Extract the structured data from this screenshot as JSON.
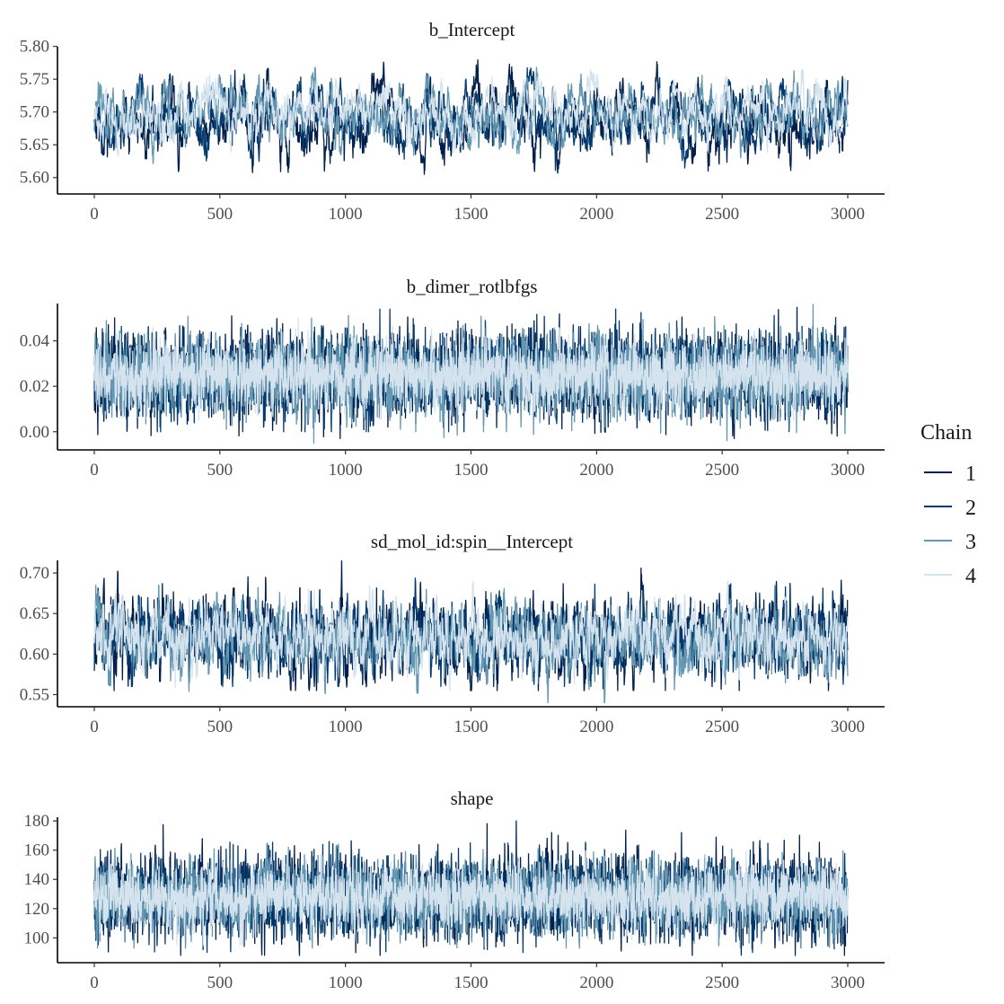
{
  "chart_data": {
    "type": "line",
    "legend": {
      "title": "Chain",
      "placement": "right"
    },
    "series_colors": [
      "#011f4b",
      "#03396c",
      "#6497b1",
      "#d5e3ee"
    ],
    "chains": [
      "1",
      "2",
      "3",
      "4"
    ],
    "panels": [
      {
        "title": "b_Intercept",
        "xlim": [
          0,
          3000
        ],
        "x_ticks": [
          0,
          500,
          1000,
          1500,
          2000,
          2500,
          3000
        ],
        "ylim": [
          5.575,
          5.805
        ],
        "y_ticks": [
          5.6,
          5.65,
          5.7,
          5.75,
          5.8
        ],
        "y_tick_labels": [
          "5.60",
          "5.65",
          "5.70",
          "5.75",
          "5.80"
        ],
        "series": [
          {
            "chain": "1",
            "center": 5.685,
            "sd": 0.028,
            "min": 5.58,
            "max": 5.795,
            "rho": 0.9
          },
          {
            "chain": "2",
            "center": 5.69,
            "sd": 0.025,
            "min": 5.6,
            "max": 5.795,
            "rho": 0.9
          },
          {
            "chain": "3",
            "center": 5.695,
            "sd": 0.024,
            "min": 5.605,
            "max": 5.785,
            "rho": 0.9
          },
          {
            "chain": "4",
            "center": 5.7,
            "sd": 0.022,
            "min": 5.59,
            "max": 5.765,
            "rho": 0.9
          }
        ]
      },
      {
        "title": "b_dimer_rotlbfgs",
        "xlim": [
          0,
          3000
        ],
        "x_ticks": [
          0,
          500,
          1000,
          1500,
          2000,
          2500,
          3000
        ],
        "ylim": [
          -0.008,
          0.058
        ],
        "y_ticks": [
          0.0,
          0.02,
          0.04
        ],
        "y_tick_labels": [
          "0.00",
          "0.02",
          "0.04"
        ],
        "series": [
          {
            "chain": "1",
            "center": 0.025,
            "sd": 0.009,
            "min": -0.003,
            "max": 0.055,
            "rho": 0.25
          },
          {
            "chain": "2",
            "center": 0.025,
            "sd": 0.009,
            "min": 0.0,
            "max": 0.054,
            "rho": 0.25
          },
          {
            "chain": "3",
            "center": 0.025,
            "sd": 0.009,
            "min": -0.005,
            "max": 0.056,
            "rho": 0.25
          },
          {
            "chain": "4",
            "center": 0.025,
            "sd": 0.007,
            "min": 0.005,
            "max": 0.05,
            "rho": 0.25
          }
        ]
      },
      {
        "title": "sd_mol_id:spin__Intercept",
        "xlim": [
          0,
          3000
        ],
        "x_ticks": [
          0,
          500,
          1000,
          1500,
          2000,
          2500,
          3000
        ],
        "ylim": [
          0.535,
          0.72
        ],
        "y_ticks": [
          0.55,
          0.6,
          0.65,
          0.7
        ],
        "y_tick_labels": [
          "0.55",
          "0.60",
          "0.65",
          "0.70"
        ],
        "series": [
          {
            "chain": "1",
            "center": 0.62,
            "sd": 0.025,
            "min": 0.555,
            "max": 0.715,
            "rho": 0.75
          },
          {
            "chain": "2",
            "center": 0.62,
            "sd": 0.023,
            "min": 0.56,
            "max": 0.695,
            "rho": 0.75
          },
          {
            "chain": "3",
            "center": 0.618,
            "sd": 0.022,
            "min": 0.54,
            "max": 0.685,
            "rho": 0.75
          },
          {
            "chain": "4",
            "center": 0.62,
            "sd": 0.02,
            "min": 0.555,
            "max": 0.69,
            "rho": 0.75
          }
        ]
      },
      {
        "title": "shape",
        "xlim": [
          0,
          3000
        ],
        "x_ticks": [
          0,
          500,
          1000,
          1500,
          2000,
          2500,
          3000
        ],
        "ylim": [
          83,
          185
        ],
        "y_ticks": [
          100,
          120,
          140,
          160,
          180
        ],
        "y_tick_labels": [
          "100",
          "120",
          "140",
          "160",
          "180"
        ],
        "series": [
          {
            "chain": "1",
            "center": 128,
            "sd": 14,
            "min": 88,
            "max": 180,
            "rho": 0.3
          },
          {
            "chain": "2",
            "center": 128,
            "sd": 13,
            "min": 90,
            "max": 178,
            "rho": 0.3
          },
          {
            "chain": "3",
            "center": 128,
            "sd": 13,
            "min": 93,
            "max": 172,
            "rho": 0.3
          },
          {
            "chain": "4",
            "center": 128,
            "sd": 10,
            "min": 95,
            "max": 165,
            "rho": 0.3
          }
        ]
      }
    ]
  }
}
